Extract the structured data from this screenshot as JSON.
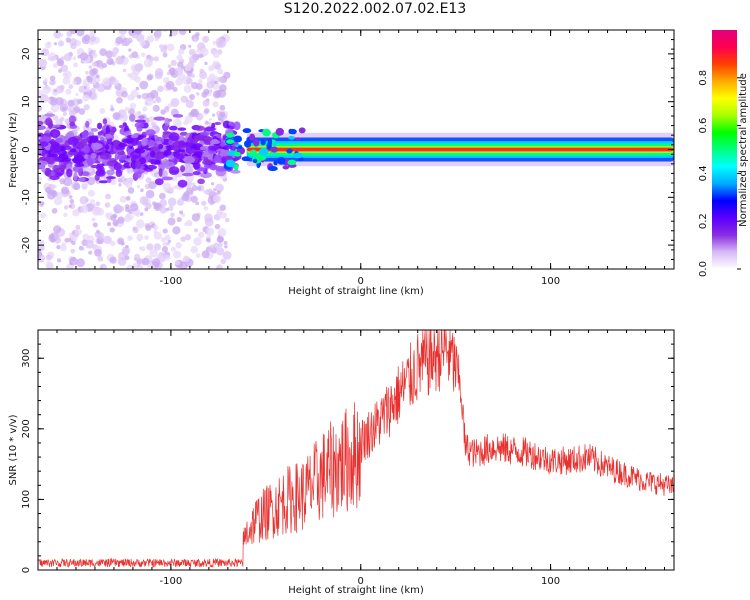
{
  "figure": {
    "title": "S120.2022.002.07.02.E13"
  },
  "chart_data": [
    {
      "type": "heatmap",
      "xlabel": "Height of straight line (km)",
      "ylabel": "Frequency (Hz)",
      "xlim": [
        -170,
        165
      ],
      "ylim": [
        -25,
        25
      ],
      "xticks": [
        -100,
        0,
        100
      ],
      "yticks": [
        -20,
        -10,
        0,
        10,
        20
      ],
      "colorbar": {
        "label": "Normalized spectral amplitude",
        "range": [
          0,
          1
        ],
        "ticks": [
          0.0,
          0.2,
          0.4,
          0.6,
          0.8
        ],
        "colors": [
          "#ffffff",
          "#d6b8f5",
          "#8a2be2",
          "#5a00ff",
          "#0000ff",
          "#00aaff",
          "#00ffff",
          "#00ff80",
          "#00ff00",
          "#aaff00",
          "#ffff00",
          "#ffaa00",
          "#ff4000",
          "#ff0050",
          "#e0007a"
        ]
      },
      "regions": [
        {
          "description": "diffuse noise",
          "x": [
            -170,
            -70
          ],
          "y": [
            -25,
            25
          ],
          "amplitude": 0.15
        },
        {
          "description": "blob band",
          "x": [
            -170,
            -65
          ],
          "y": [
            -8,
            8
          ],
          "amplitude": 0.3
        },
        {
          "description": "signal band",
          "x": [
            -60,
            165
          ],
          "y": [
            -2,
            2
          ],
          "amplitude": 0.9
        }
      ]
    },
    {
      "type": "line",
      "xlabel": "Height of straight line (km)",
      "ylabel": "SNR (10 * v/v)",
      "xlim": [
        -170,
        165
      ],
      "ylim": [
        0,
        340
      ],
      "xticks": [
        -100,
        0,
        100
      ],
      "yticks": [
        0,
        100,
        200,
        300
      ],
      "color": "#e8312f",
      "envelope": {
        "x": [
          -170,
          -120,
          -80,
          -65,
          -60,
          -55,
          -50,
          -40,
          -30,
          -20,
          -10,
          0,
          10,
          20,
          30,
          40,
          45,
          50,
          53,
          55,
          60,
          70,
          80,
          90,
          100,
          110,
          120,
          130,
          140,
          150,
          160,
          165
        ],
        "y": [
          10,
          10,
          10,
          15,
          60,
          80,
          90,
          110,
          120,
          150,
          170,
          190,
          220,
          260,
          300,
          320,
          330,
          300,
          260,
          180,
          170,
          180,
          175,
          170,
          160,
          160,
          165,
          150,
          140,
          130,
          125,
          120
        ]
      }
    }
  ]
}
